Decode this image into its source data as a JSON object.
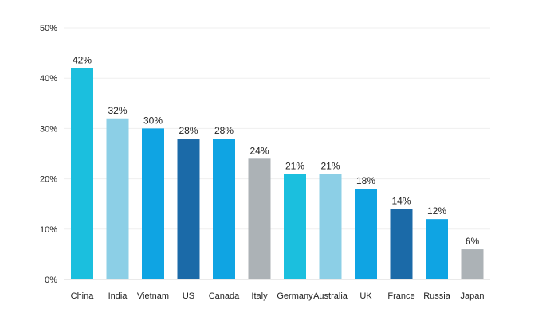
{
  "chart_data": {
    "type": "bar",
    "title": "",
    "xlabel": "",
    "ylabel": "",
    "categories": [
      "China",
      "India",
      "Vietnam",
      "US",
      "Canada",
      "Italy",
      "Germany",
      "Australia",
      "UK",
      "France",
      "Russia",
      "Japan"
    ],
    "values": [
      42,
      32,
      30,
      28,
      28,
      24,
      21,
      21,
      18,
      14,
      12,
      6
    ],
    "value_labels": [
      "42%",
      "32%",
      "30%",
      "28%",
      "28%",
      "24%",
      "21%",
      "21%",
      "18%",
      "14%",
      "12%",
      "6%"
    ],
    "bar_colors": [
      "#1bbfde",
      "#8ccfe6",
      "#0fa4e3",
      "#1b6aa8",
      "#0fa4e3",
      "#acb2b6",
      "#1bbfde",
      "#8ccfe6",
      "#0fa4e3",
      "#1b6aa8",
      "#0fa4e3",
      "#acb2b6"
    ],
    "ylim": [
      0,
      50
    ],
    "y_ticks": [
      0,
      10,
      20,
      30,
      40,
      50
    ],
    "y_tick_labels": [
      "0%",
      "10%",
      "20%",
      "30%",
      "40%",
      "50%"
    ],
    "grid": true,
    "legend": "none"
  }
}
